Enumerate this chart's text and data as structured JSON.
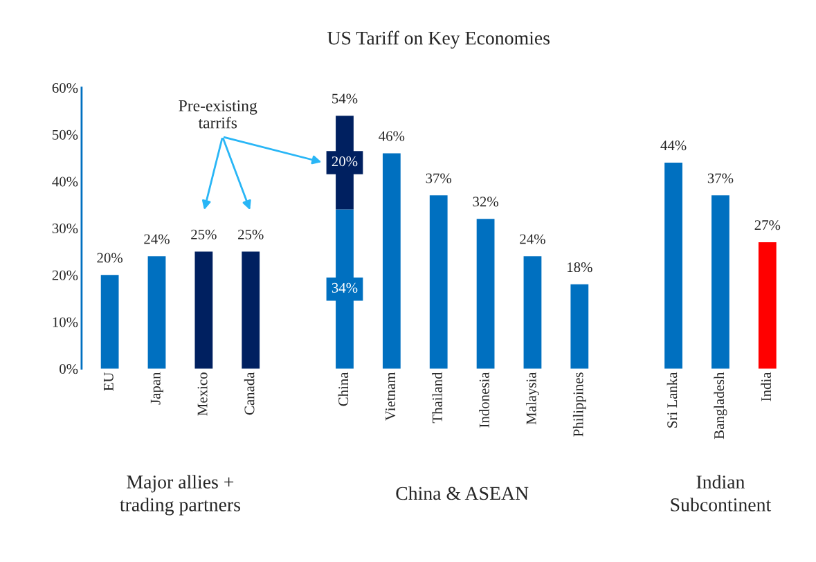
{
  "chart_data": {
    "type": "bar",
    "title": "US Tariff on Key Economies",
    "stacked": true,
    "categories": [
      "EU",
      "Japan",
      "Mexico",
      "Canada",
      null,
      "China",
      "Vietnam",
      "Thailand",
      "Indonesia",
      "Malaysia",
      "Philippines",
      null,
      "Sri Lanka",
      "Bangladesh",
      "India"
    ],
    "series": [
      {
        "colors": [
          "#0070c0",
          "#0070c0",
          "#0070c0",
          "#0070c0",
          "#0070c0",
          "#0070c0",
          "#0070c0",
          "#0070c0",
          "#0070c0",
          "#0070c0",
          "#0070c0",
          "#0070c0",
          "#0070c0",
          "#0070c0",
          "#ff0000"
        ],
        "values": [
          20,
          24,
          null,
          null,
          null,
          34,
          46,
          37,
          32,
          24,
          18,
          null,
          44,
          37,
          27
        ],
        "value_labels": [
          "20%",
          "24%",
          null,
          null,
          null,
          "34%",
          "46%",
          "37%",
          "32%",
          "24%",
          "18%",
          null,
          "44%",
          "37%",
          "27%"
        ]
      },
      {
        "color": "#002060",
        "values": [
          null,
          null,
          25,
          25,
          null,
          20,
          null,
          null,
          null,
          null,
          null,
          null,
          null,
          null,
          null
        ],
        "value_labels": [
          null,
          null,
          "25%",
          "25%",
          null,
          "20%",
          null,
          null,
          null,
          null,
          null,
          null,
          null,
          null,
          null
        ]
      }
    ],
    "totals": [
      null,
      null,
      null,
      null,
      null,
      "54%",
      null,
      null,
      null,
      null,
      null,
      null,
      null,
      null,
      null
    ],
    "ylim": [
      0,
      60
    ],
    "yticks": [
      {
        "value": 0,
        "label": "0%"
      },
      {
        "value": 10,
        "label": "10%"
      },
      {
        "value": 20,
        "label": "20%"
      },
      {
        "value": 30,
        "label": "30%"
      },
      {
        "value": 40,
        "label": "40%"
      },
      {
        "value": 50,
        "label": "50%"
      },
      {
        "value": 60,
        "label": "60%"
      }
    ],
    "grid": false,
    "legend": false,
    "annotations": [
      "Major allies +\ntrading partners",
      "China & ASEAN",
      "Indian\nSubcontinent",
      "Pre-existing\ntarrifs"
    ]
  }
}
